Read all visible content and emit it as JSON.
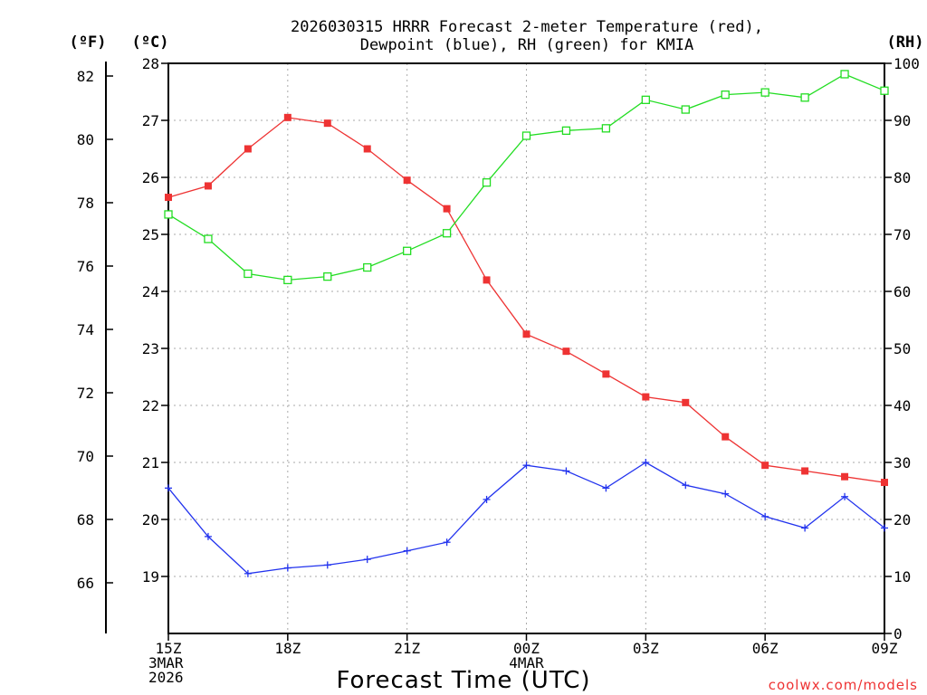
{
  "chart_data": {
    "type": "line",
    "title_line1": "2026030315 HRRR Forecast 2-meter Temperature (red),",
    "title_line2": "Dewpoint (blue), RH (green) for KMIA",
    "axis_label_f": "(ºF)",
    "axis_label_c": "(ºC)",
    "axis_label_rh": "(RH)",
    "xlabel": "Forecast Time (UTC)",
    "credit": "coolwx.com/models",
    "x_ticks": [
      {
        "hour": 0,
        "lines": [
          "15Z",
          "3MAR",
          "2026"
        ]
      },
      {
        "hour": 3,
        "lines": [
          "18Z"
        ]
      },
      {
        "hour": 6,
        "lines": [
          "21Z"
        ]
      },
      {
        "hour": 9,
        "lines": [
          "00Z",
          "4MAR"
        ]
      },
      {
        "hour": 12,
        "lines": [
          "03Z"
        ]
      },
      {
        "hour": 15,
        "lines": [
          "06Z"
        ]
      },
      {
        "hour": 18,
        "lines": [
          "09Z"
        ]
      }
    ],
    "x_range": [
      0,
      18
    ],
    "celsius_range": [
      18.0,
      28.0
    ],
    "celsius_ticks": [
      "19",
      "20",
      "21",
      "22",
      "23",
      "24",
      "25",
      "26",
      "27",
      "28"
    ],
    "fahrenheit_ticks": [
      "66",
      "68",
      "70",
      "72",
      "74",
      "76",
      "78",
      "80",
      "82"
    ],
    "rh_range": [
      0,
      100
    ],
    "rh_ticks": [
      "0",
      "10",
      "20",
      "30",
      "40",
      "50",
      "60",
      "70",
      "80",
      "90",
      "100"
    ],
    "hours": [
      0,
      1,
      2,
      3,
      4,
      5,
      6,
      7,
      8,
      9,
      10,
      11,
      12,
      13,
      14,
      15,
      16,
      17,
      18
    ],
    "series": [
      {
        "name": "2-meter Temperature",
        "units": "C",
        "axis": "celsius",
        "color": "#ee3333",
        "marker": "filled-square",
        "values": [
          25.65,
          25.85,
          26.5,
          27.05,
          26.95,
          26.5,
          25.95,
          25.45,
          24.2,
          23.25,
          22.95,
          22.55,
          22.15,
          22.05,
          21.45,
          20.95,
          20.85,
          20.75,
          20.65
        ]
      },
      {
        "name": "Dewpoint",
        "units": "C",
        "axis": "celsius",
        "color": "#2233ee",
        "marker": "plus",
        "values": [
          20.55,
          19.7,
          19.05,
          19.15,
          19.2,
          19.3,
          19.45,
          19.6,
          20.35,
          20.95,
          20.85,
          20.55,
          21.0,
          20.6,
          20.45,
          20.05,
          19.85,
          20.4,
          19.85
        ]
      },
      {
        "name": "Relative Humidity",
        "units": "%",
        "axis": "rh",
        "color": "#22dd22",
        "marker": "open-square",
        "values": [
          73.5,
          69.2,
          63.1,
          62.0,
          62.6,
          64.2,
          67.1,
          70.2,
          79.1,
          87.3,
          88.2,
          88.6,
          93.6,
          91.9,
          94.5,
          94.9,
          94.0,
          98.1,
          95.2
        ]
      }
    ]
  }
}
